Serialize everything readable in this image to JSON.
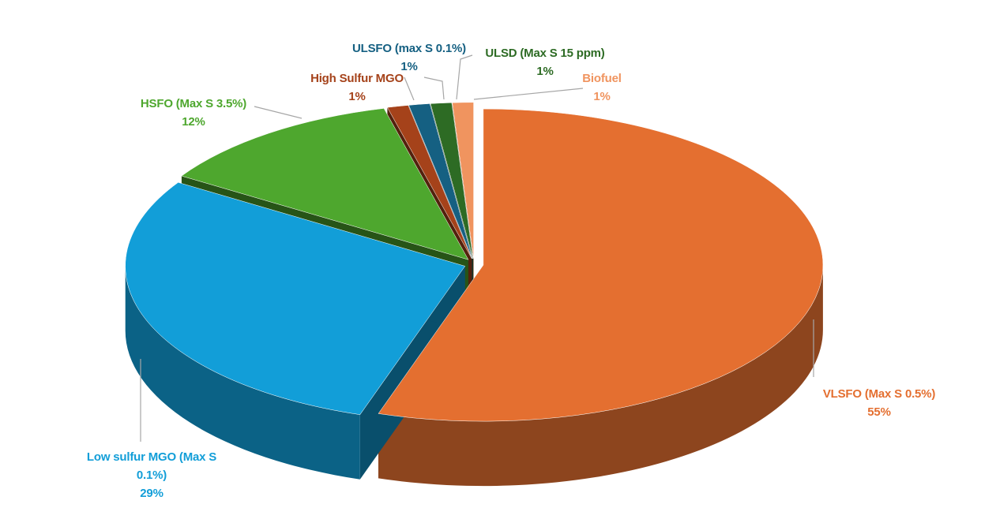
{
  "chart_data": {
    "type": "pie",
    "categories": [
      "VLSFO (Max S 0.5%)",
      "Low sulfur MGO (Max S 0.1%)",
      "HSFO (Max S 3.5%)",
      "High Sulfur MGO",
      "ULSFO (max S 0.1%)",
      "ULSD (Max S 15 ppm)",
      "Biofuel"
    ],
    "values": [
      55,
      29,
      12,
      1,
      1,
      1,
      1
    ],
    "value_labels": [
      "55%",
      "29%",
      "12%",
      "1%",
      "1%",
      "1%",
      "1%"
    ],
    "colors": [
      "#e46f30",
      "#129ed8",
      "#4ea72e",
      "#a5421a",
      "#156082",
      "#2d6b24",
      "#f0945f"
    ],
    "label_colors": [
      "#e46f30",
      "#129ed8",
      "#4ea72e",
      "#a5421a",
      "#156082",
      "#2d6b24",
      "#f0945f"
    ]
  }
}
